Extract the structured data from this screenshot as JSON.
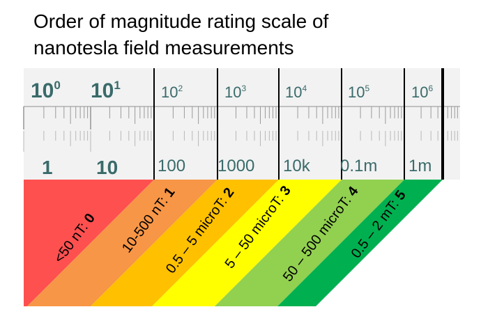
{
  "title": {
    "line1": "Order of magnitude rating scale of",
    "line2": "nanotesla field measurements"
  },
  "ruler": {
    "top_labels": [
      {
        "base": "10",
        "exp": "0"
      },
      {
        "base": "10",
        "exp": "1"
      },
      {
        "base": "10",
        "exp": "2"
      },
      {
        "base": "10",
        "exp": "3"
      },
      {
        "base": "10",
        "exp": "4"
      },
      {
        "base": "10",
        "exp": "5"
      },
      {
        "base": "10",
        "exp": "6"
      }
    ],
    "bottom_labels": [
      "1",
      "10",
      "100",
      "1000",
      "10k",
      "0.1m",
      "1m"
    ]
  },
  "bands": [
    {
      "range": "<50 nT: ",
      "level": "0",
      "color": "#ff5050"
    },
    {
      "range": "10-500 nT: ",
      "level": "1",
      "color": "#f79646"
    },
    {
      "range": "0.5 – 5 microT: ",
      "level": "2",
      "color": "#ffc000"
    },
    {
      "range": "5 – 50 microT: ",
      "level": "3",
      "color": "#ffff00"
    },
    {
      "range": "50 – 500 microT: ",
      "level": "4",
      "color": "#92d050"
    },
    {
      "range": "0.5 – 2 mT: ",
      "level": "5",
      "color": "#00b050"
    }
  ],
  "colors": {
    "ruler_bg": "#f2f2f2",
    "ruler_text": "#3a6a6a",
    "divider": "#000000"
  }
}
